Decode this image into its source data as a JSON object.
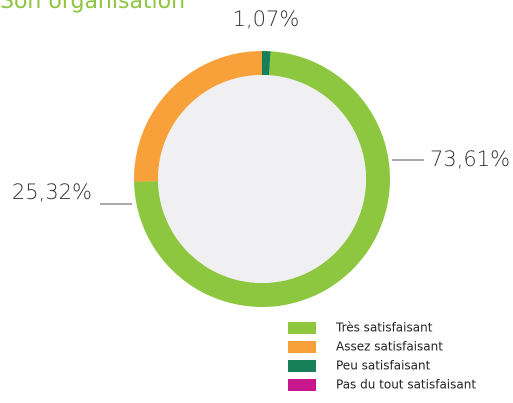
{
  "chart_data": {
    "type": "pie",
    "title": "Son organisation",
    "categories": [
      "Très satisfaisant",
      "Assez satisfaisant",
      "Peu satisfaisant",
      "Pas du tout satisfaisant"
    ],
    "values": [
      73.61,
      25.32,
      1.07,
      0
    ],
    "value_labels": [
      "73,61%",
      "25,32%",
      "1,07%",
      null
    ],
    "colors": [
      "#8dc63f",
      "#f8a03a",
      "#17805a",
      "#c8178d"
    ],
    "donut": true
  }
}
